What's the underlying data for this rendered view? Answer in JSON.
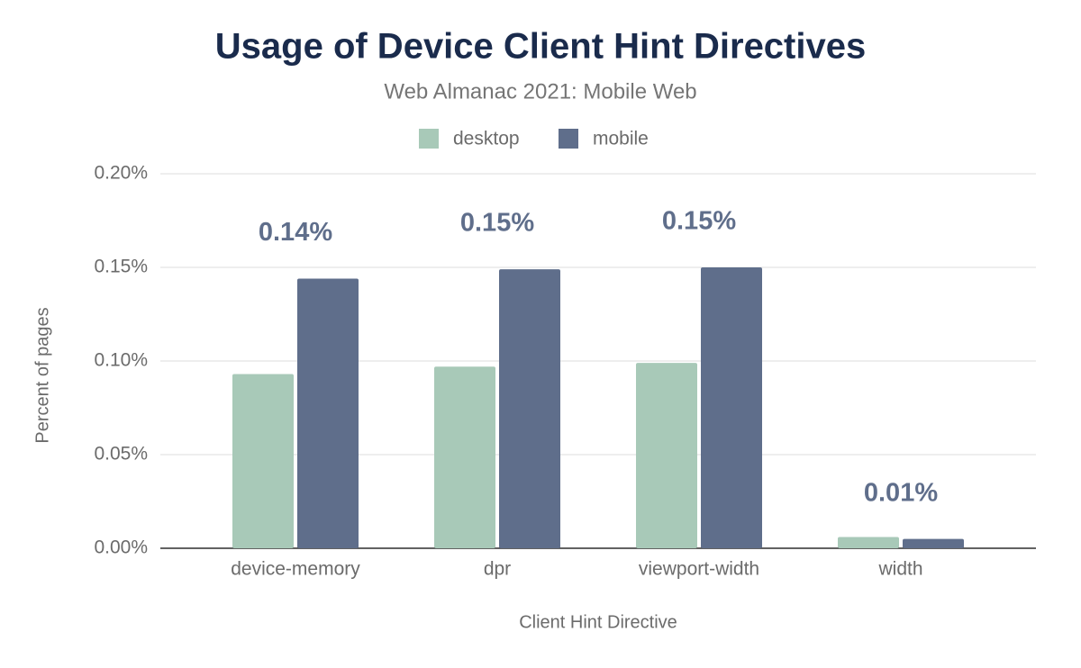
{
  "chart_data": {
    "type": "bar",
    "title": "Usage of Device Client Hint Directives",
    "subtitle": "Web Almanac 2021: Mobile Web",
    "x_label": "Client Hint Directive",
    "y_label": "Percent of pages",
    "categories": [
      "device-memory",
      "dpr",
      "viewport-width",
      "width"
    ],
    "series": [
      {
        "name": "desktop",
        "color": "#a8c9b8",
        "values": [
          0.093,
          0.097,
          0.099,
          0.006
        ]
      },
      {
        "name": "mobile",
        "color": "#5f6e8b",
        "values": [
          0.144,
          0.149,
          0.15,
          0.005
        ],
        "value_labels": [
          "0.14%",
          "0.15%",
          "0.15%",
          "0.01%"
        ]
      }
    ],
    "ylim": [
      0,
      0.2
    ],
    "yticks": [
      {
        "value": 0,
        "label": "0.00%"
      },
      {
        "value": 0.05,
        "label": "0.05%"
      },
      {
        "value": 0.1,
        "label": "0.10%"
      },
      {
        "value": 0.15,
        "label": "0.15%"
      },
      {
        "value": 0.2,
        "label": "0.20%"
      }
    ],
    "grid": true,
    "legend": "top"
  }
}
